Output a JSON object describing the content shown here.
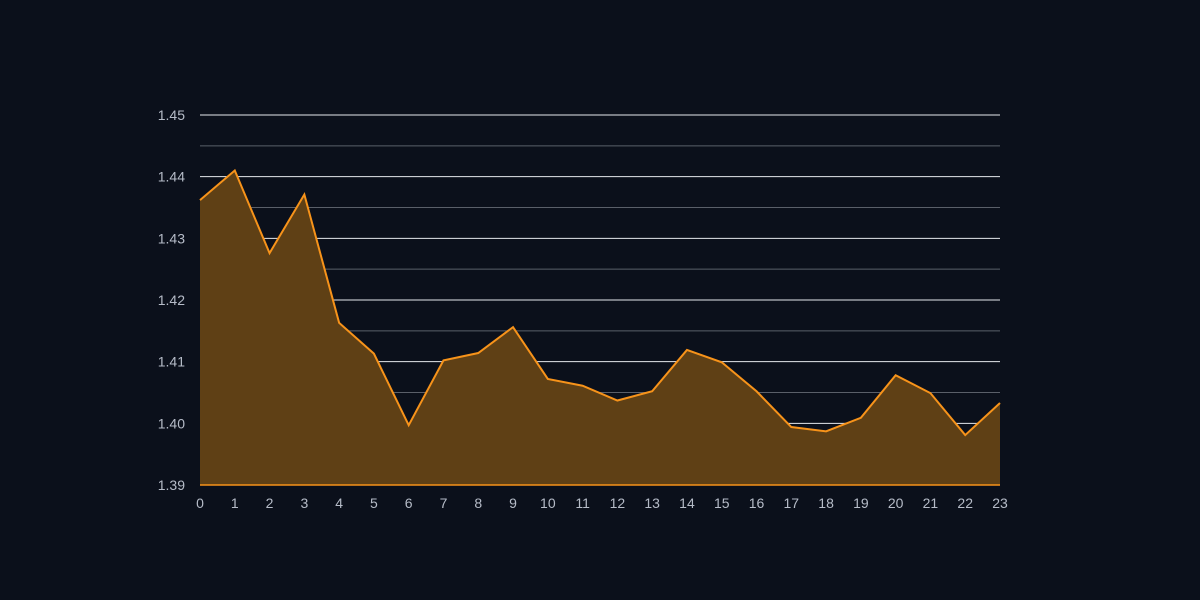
{
  "colors": {
    "background": "#0b101b",
    "line": "#f7931a",
    "area_fill": "#5f4015",
    "grid_major": "#e6e8ec",
    "grid_minor": "#5a5f69",
    "tick_text": "#b6bcc8"
  },
  "chart_data": {
    "type": "area",
    "title": "",
    "xlabel": "",
    "ylabel": "",
    "x": [
      0,
      1,
      2,
      3,
      4,
      5,
      6,
      7,
      8,
      9,
      10,
      11,
      12,
      13,
      14,
      15,
      16,
      17,
      18,
      19,
      20,
      21,
      22,
      23
    ],
    "x_tick_labels": [
      "0",
      "1",
      "2",
      "3",
      "4",
      "5",
      "6",
      "7",
      "8",
      "9",
      "10",
      "11",
      "12",
      "13",
      "14",
      "15",
      "16",
      "17",
      "18",
      "19",
      "20",
      "21",
      "22",
      "23"
    ],
    "y_tick_labels": [
      "1.45",
      "1.44",
      "1.43",
      "1.42",
      "1.41",
      "1.40",
      "1.39"
    ],
    "y_ticks": [
      1.45,
      1.44,
      1.43,
      1.42,
      1.41,
      1.4,
      1.39
    ],
    "y_minor_ticks": [
      1.445,
      1.435,
      1.425,
      1.415,
      1.405,
      1.395
    ],
    "ylim": [
      1.39,
      1.45
    ],
    "xlim": [
      0,
      23
    ],
    "grid": true,
    "series": [
      {
        "values": [
          1.4362,
          1.441,
          1.4276,
          1.4371,
          1.4163,
          1.4113,
          1.3997,
          1.4102,
          1.4114,
          1.4156,
          1.4072,
          1.4061,
          1.4037,
          1.4052,
          1.4119,
          1.4099,
          1.4052,
          1.3994,
          1.3987,
          1.4009,
          1.4078,
          1.4049,
          1.3981,
          1.4033
        ]
      }
    ]
  }
}
